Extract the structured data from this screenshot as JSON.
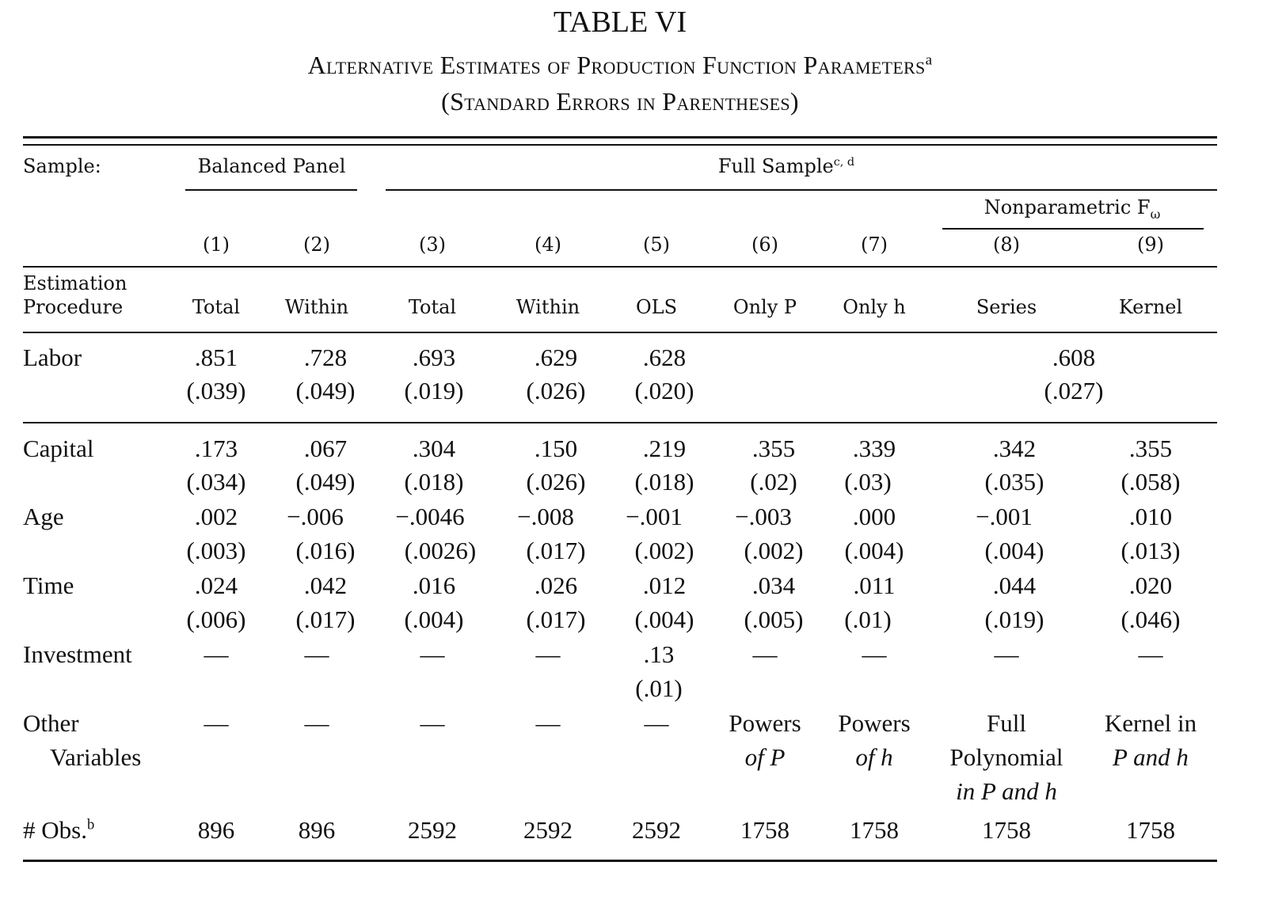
{
  "title": "TABLE VI",
  "subtitle": {
    "line1": "Alternative Estimates of Production Function Parameters",
    "line1_note": "a",
    "line2": "(Standard Errors in Parentheses)"
  },
  "header": {
    "sample_label": "Sample:",
    "balanced_panel": "Balanced Panel",
    "full_sample": "Full Sample",
    "full_sample_note": "c, d",
    "nonparametric": "Nonparametric F",
    "nonparametric_sub": "ω",
    "col_numbers": [
      "(1)",
      "(2)",
      "(3)",
      "(4)",
      "(5)",
      "(6)",
      "(7)",
      "(8)",
      "(9)"
    ],
    "estimation_label_1": "Estimation",
    "estimation_label_2": "Procedure",
    "procedures": [
      "Total",
      "Within",
      "Total",
      "Within",
      "OLS",
      "Only P",
      "Only h",
      "Series",
      "Kernel"
    ]
  },
  "labor": {
    "label": "Labor",
    "coef": [
      ".851",
      ".728",
      ".693",
      ".629",
      ".628"
    ],
    "se": [
      "(.039)",
      "(.049)",
      "(.019)",
      "(.026)",
      "(.020)"
    ],
    "pooled_coef": ".608",
    "pooled_se": "(.027)"
  },
  "rows": [
    {
      "label": "Capital",
      "coef": [
        ".173",
        ".067",
        ".304",
        ".150",
        ".219",
        ".355",
        ".339",
        ".342",
        ".355"
      ],
      "se": [
        "(.034)",
        "(.049)",
        "(.018)",
        "(.026)",
        "(.018)",
        "(.02)",
        "(.03)",
        "(.035)",
        "(.058)"
      ]
    },
    {
      "label": "Age",
      "coef": [
        ".002",
        "−.006",
        "−.0046",
        "−.008",
        "−.001",
        "−.003",
        ".000",
        "−.001",
        ".010"
      ],
      "se": [
        "(.003)",
        "(.016)",
        "(.0026)",
        "(.017)",
        "(.002)",
        "(.002)",
        "(.004)",
        "(.004)",
        "(.013)"
      ]
    },
    {
      "label": "Time",
      "coef": [
        ".024",
        ".042",
        ".016",
        ".026",
        ".012",
        ".034",
        ".011",
        ".044",
        ".020"
      ],
      "se": [
        "(.006)",
        "(.017)",
        "(.004)",
        "(.017)",
        "(.004)",
        "(.005)",
        "(.01)",
        "(.019)",
        "(.046)"
      ]
    },
    {
      "label": "Investment",
      "coef": [
        "—",
        "—",
        "—",
        "—",
        ".13",
        "—",
        "—",
        "—",
        "—"
      ],
      "se": [
        "",
        "",
        "",
        "",
        "(.01)",
        "",
        "",
        "",
        ""
      ]
    }
  ],
  "other": {
    "label_1": "Other",
    "label_2": "Variables",
    "dashes": [
      "—",
      "—",
      "—",
      "—",
      "—"
    ],
    "col6": [
      "Powers",
      "of P"
    ],
    "col7": [
      "Powers",
      "of h"
    ],
    "col8": [
      "Full",
      "Polynomial",
      "in P and h"
    ],
    "col9": [
      "Kernel in",
      "P and h"
    ]
  },
  "obs": {
    "label": "# Obs.",
    "note": "b",
    "values": [
      "896",
      "896",
      "2592",
      "2592",
      "2592",
      "1758",
      "1758",
      "1758",
      "1758"
    ]
  }
}
